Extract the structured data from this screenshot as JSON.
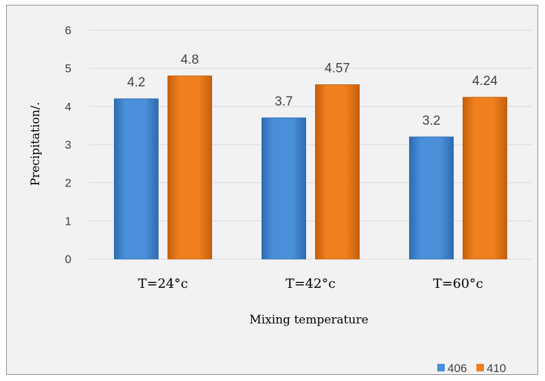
{
  "chart_data": {
    "type": "bar",
    "categories": [
      "T=24°c",
      "T=42°c",
      "T=60°c"
    ],
    "series": [
      {
        "name": "406",
        "values": [
          4.2,
          3.7,
          3.2
        ],
        "color": "#4a90d9",
        "dark": "#2e6bb0"
      },
      {
        "name": "410",
        "values": [
          4.8,
          4.57,
          4.24
        ],
        "color": "#f07f1e",
        "dark": "#c45f0c"
      }
    ],
    "data_labels": [
      [
        "4.2",
        "3.7",
        "3.2"
      ],
      [
        "4.8",
        "4.57",
        "4.24"
      ]
    ],
    "yticks": [
      "0",
      "1",
      "2",
      "3",
      "4",
      "5",
      "6"
    ],
    "ylim": [
      0,
      6
    ],
    "xlabel": "Mixing temperature",
    "ylabel": "Precipitation/.",
    "grid": true,
    "legend_position": "bottom-right"
  }
}
